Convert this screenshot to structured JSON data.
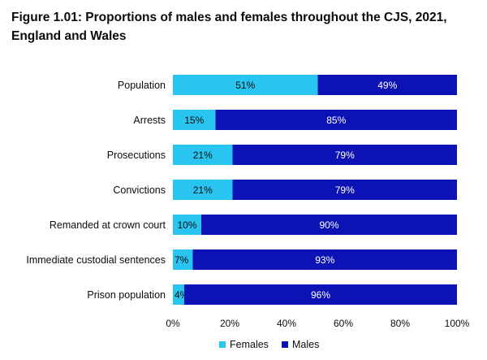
{
  "title": "Figure 1.01: Proportions of males and females throughout the CJS, 2021, England and Wales",
  "chart_data": {
    "type": "bar",
    "orientation": "horizontal",
    "stacked": true,
    "categories": [
      "Population",
      "Arrests",
      "Prosecutions",
      "Convictions",
      "Remanded at crown court",
      "Immediate custodial sentences",
      "Prison population"
    ],
    "series": [
      {
        "name": "Females",
        "color": "#29c5f0",
        "values": [
          51,
          15,
          21,
          21,
          10,
          7,
          4
        ],
        "labels": [
          "51%",
          "15%",
          "21%",
          "21%",
          "10%",
          "7%",
          "4%"
        ]
      },
      {
        "name": "Males",
        "color": "#0d12b4",
        "values": [
          49,
          85,
          79,
          79,
          90,
          93,
          96
        ],
        "labels": [
          "49%",
          "85%",
          "79%",
          "79%",
          "90%",
          "93%",
          "96%"
        ]
      }
    ],
    "xlim": [
      0,
      100
    ],
    "xticks": [
      "0%",
      "20%",
      "40%",
      "60%",
      "80%",
      "100%"
    ],
    "xlabel": "",
    "ylabel": "",
    "grid": false,
    "legend": "bottom"
  }
}
